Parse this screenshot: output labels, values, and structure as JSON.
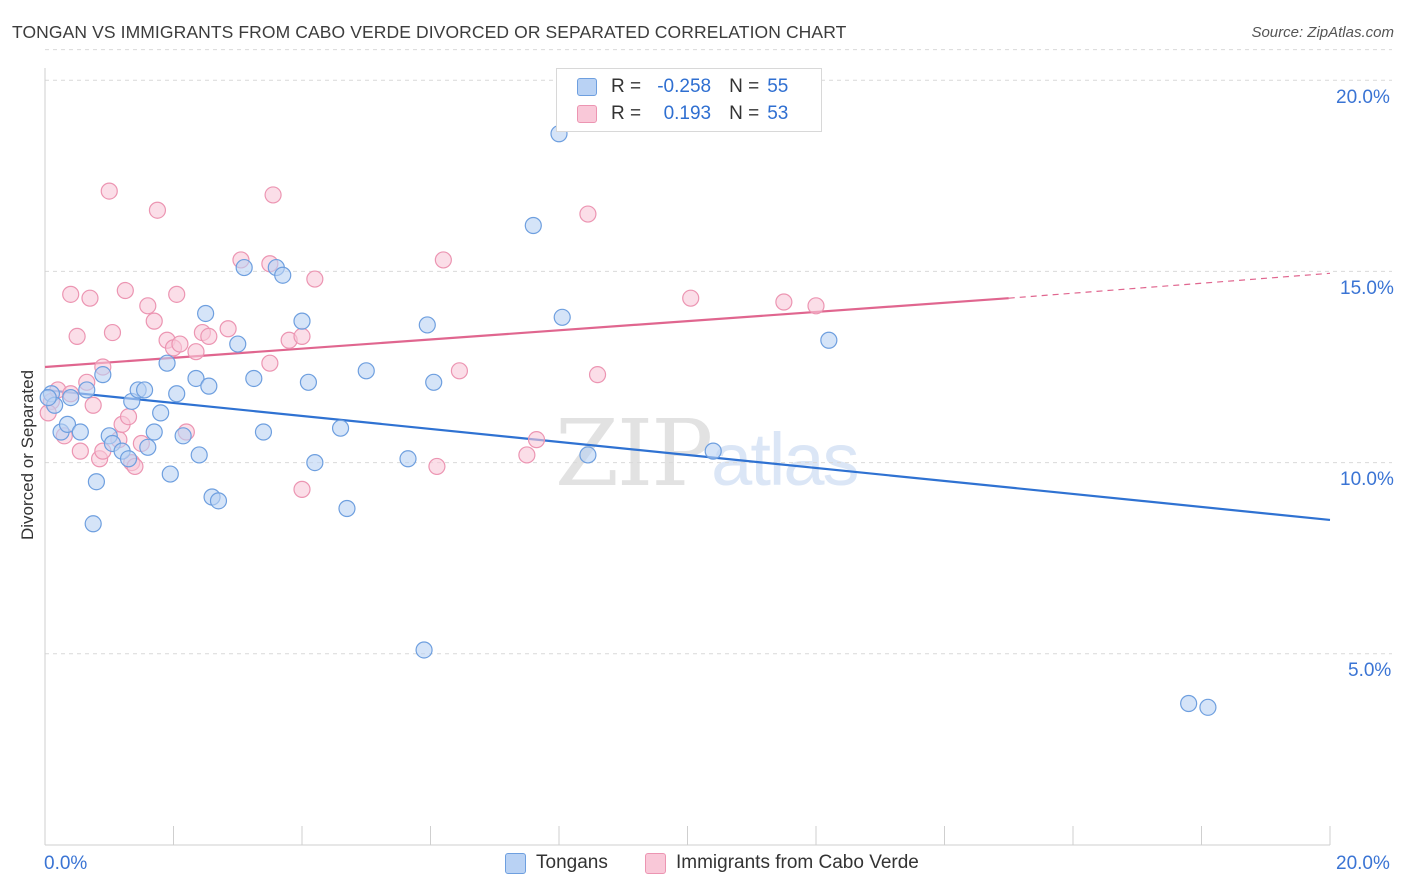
{
  "title": "TONGAN VS IMMIGRANTS FROM CABO VERDE DIVORCED OR SEPARATED CORRELATION CHART",
  "source": "Source: ZipAtlas.com",
  "watermark": {
    "zip": "ZIP",
    "atlas": "atlas"
  },
  "legend": {
    "rows": [
      {
        "r_label": "R =",
        "r_value": "-0.258",
        "n_label": "N =",
        "n_value": "55"
      },
      {
        "r_label": "R =",
        "r_value": "0.193",
        "n_label": "N =",
        "n_value": "53"
      }
    ]
  },
  "bottom_legend": {
    "series_a": "Tongans",
    "series_b": "Immigrants from Cabo Verde"
  },
  "colors": {
    "tongans_fill": "#b9d2f4",
    "tongans_stroke": "#6e9fdf",
    "tongans_line": "#2f72d2",
    "cabo_fill": "#f9c8d8",
    "cabo_stroke": "#ec95b2",
    "cabo_line": "#e0668f",
    "tick_label": "#3a74d4",
    "grid": "#d9d9d9"
  },
  "axis_labels": {
    "y": "Divorced or Separated",
    "x_min": "0.0%",
    "x_max": "20.0%",
    "y_ticks": [
      "20.0%",
      "15.0%",
      "10.0%",
      "5.0%"
    ]
  },
  "chart_data": {
    "type": "scatter",
    "title": "TONGAN VS IMMIGRANTS FROM CABO VERDE DIVORCED OR SEPARATED CORRELATION CHART",
    "xlabel": "",
    "ylabel": "Divorced or Separated",
    "xlim": [
      0,
      20
    ],
    "ylim": [
      0,
      20.8
    ],
    "y_ticks": [
      5,
      10,
      15,
      20
    ],
    "grid": true,
    "legend_placement": "top-center",
    "series": [
      {
        "name": "Tongans",
        "r": -0.258,
        "n": 55,
        "trend": {
          "x0": 0,
          "y0": 11.9,
          "x1": 20,
          "y1": 8.5
        },
        "points": [
          [
            0.1,
            11.8
          ],
          [
            0.15,
            11.5
          ],
          [
            0.25,
            10.8
          ],
          [
            0.35,
            11.0
          ],
          [
            0.4,
            11.7
          ],
          [
            0.55,
            10.8
          ],
          [
            0.65,
            11.9
          ],
          [
            0.75,
            8.4
          ],
          [
            0.8,
            9.5
          ],
          [
            0.9,
            12.3
          ],
          [
            1.0,
            10.7
          ],
          [
            1.05,
            10.5
          ],
          [
            1.2,
            10.3
          ],
          [
            1.3,
            10.1
          ],
          [
            1.35,
            11.6
          ],
          [
            1.45,
            11.9
          ],
          [
            1.55,
            11.9
          ],
          [
            1.6,
            10.4
          ],
          [
            1.7,
            10.8
          ],
          [
            1.8,
            11.3
          ],
          [
            1.9,
            12.6
          ],
          [
            1.95,
            9.7
          ],
          [
            2.05,
            11.8
          ],
          [
            2.15,
            10.7
          ],
          [
            2.35,
            12.2
          ],
          [
            2.4,
            10.2
          ],
          [
            2.5,
            13.9
          ],
          [
            2.55,
            12.0
          ],
          [
            2.6,
            9.1
          ],
          [
            2.7,
            9.0
          ],
          [
            3.0,
            13.1
          ],
          [
            3.1,
            15.1
          ],
          [
            3.25,
            12.2
          ],
          [
            3.4,
            10.8
          ],
          [
            3.6,
            15.1
          ],
          [
            3.7,
            14.9
          ],
          [
            4.0,
            13.7
          ],
          [
            4.1,
            12.1
          ],
          [
            4.2,
            10.0
          ],
          [
            4.6,
            10.9
          ],
          [
            4.7,
            8.8
          ],
          [
            5.0,
            12.4
          ],
          [
            5.65,
            10.1
          ],
          [
            5.9,
            5.1
          ],
          [
            5.95,
            13.6
          ],
          [
            6.05,
            12.1
          ],
          [
            7.6,
            16.2
          ],
          [
            8.0,
            18.6
          ],
          [
            8.05,
            13.8
          ],
          [
            8.45,
            10.2
          ],
          [
            10.4,
            10.3
          ],
          [
            12.2,
            13.2
          ],
          [
            17.8,
            3.7
          ],
          [
            18.1,
            3.6
          ],
          [
            0.05,
            11.7
          ]
        ]
      },
      {
        "name": "Immigrants from Cabo Verde",
        "r": 0.193,
        "n": 53,
        "trend": {
          "x0": 0,
          "y0": 12.5,
          "x1": 15,
          "y1": 14.3,
          "dashed_to_x": 20,
          "dashed_to_y": 14.95
        },
        "points": [
          [
            0.1,
            11.6
          ],
          [
            0.2,
            11.9
          ],
          [
            0.3,
            10.7
          ],
          [
            0.4,
            11.8
          ],
          [
            0.4,
            14.4
          ],
          [
            0.5,
            13.3
          ],
          [
            0.55,
            10.3
          ],
          [
            0.65,
            12.1
          ],
          [
            0.7,
            14.3
          ],
          [
            0.75,
            11.5
          ],
          [
            0.85,
            10.1
          ],
          [
            0.9,
            12.5
          ],
          [
            0.9,
            10.3
          ],
          [
            1.0,
            17.1
          ],
          [
            1.05,
            13.4
          ],
          [
            1.15,
            10.6
          ],
          [
            1.2,
            11.0
          ],
          [
            1.25,
            14.5
          ],
          [
            1.3,
            11.2
          ],
          [
            1.35,
            10.0
          ],
          [
            1.4,
            9.9
          ],
          [
            1.5,
            10.5
          ],
          [
            1.6,
            14.1
          ],
          [
            1.7,
            13.7
          ],
          [
            1.75,
            16.6
          ],
          [
            1.9,
            13.2
          ],
          [
            2.0,
            13.0
          ],
          [
            2.05,
            14.4
          ],
          [
            2.1,
            13.1
          ],
          [
            2.2,
            10.8
          ],
          [
            2.35,
            12.9
          ],
          [
            2.45,
            13.4
          ],
          [
            2.55,
            13.3
          ],
          [
            2.85,
            13.5
          ],
          [
            3.05,
            15.3
          ],
          [
            3.5,
            12.6
          ],
          [
            3.5,
            15.2
          ],
          [
            3.55,
            17.0
          ],
          [
            3.8,
            13.2
          ],
          [
            4.0,
            13.3
          ],
          [
            4.0,
            9.3
          ],
          [
            4.2,
            14.8
          ],
          [
            6.1,
            9.9
          ],
          [
            6.2,
            15.3
          ],
          [
            6.45,
            12.4
          ],
          [
            7.5,
            10.2
          ],
          [
            7.65,
            10.6
          ],
          [
            8.45,
            16.5
          ],
          [
            8.6,
            12.3
          ],
          [
            10.05,
            14.3
          ],
          [
            11.5,
            14.2
          ],
          [
            12.0,
            14.1
          ],
          [
            0.05,
            11.3
          ]
        ]
      }
    ]
  }
}
